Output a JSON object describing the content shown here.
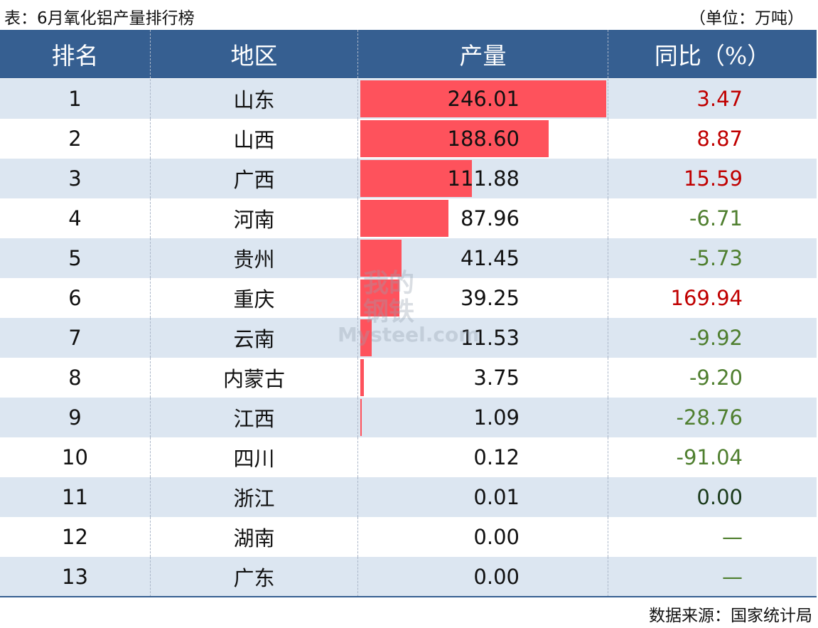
{
  "title": "表：6月氧化铝产量排行榜",
  "unit": "（单位：万吨）",
  "source": "数据来源：国家统计局",
  "watermark": {
    "line1": "我的",
    "line2": "钢铁",
    "line3": "Mysteel.com"
  },
  "colors": {
    "header": "#365f91",
    "row_alt": "#dce6f1",
    "bar": "#fe525c",
    "positive": "#c00000",
    "negative": "#4f7f2f"
  },
  "chart_data": {
    "type": "table",
    "columns": [
      "排名",
      "地区",
      "产量",
      "同比（%）"
    ],
    "rows": [
      {
        "rank": "1",
        "region": "山东",
        "output": "246.01",
        "yoy": "3.47"
      },
      {
        "rank": "2",
        "region": "山西",
        "output": "188.60",
        "yoy": "8.87"
      },
      {
        "rank": "3",
        "region": "广西",
        "output": "111.88",
        "yoy": "15.59"
      },
      {
        "rank": "4",
        "region": "河南",
        "output": "87.96",
        "yoy": "-6.71"
      },
      {
        "rank": "5",
        "region": "贵州",
        "output": "41.45",
        "yoy": "-5.73"
      },
      {
        "rank": "6",
        "region": "重庆",
        "output": "39.25",
        "yoy": "169.94"
      },
      {
        "rank": "7",
        "region": "云南",
        "output": "11.53",
        "yoy": "-9.92"
      },
      {
        "rank": "8",
        "region": "内蒙古",
        "output": "3.75",
        "yoy": "-9.20"
      },
      {
        "rank": "9",
        "region": "江西",
        "output": "1.09",
        "yoy": "-28.76"
      },
      {
        "rank": "10",
        "region": "四川",
        "output": "0.12",
        "yoy": "-91.04"
      },
      {
        "rank": "11",
        "region": "浙江",
        "output": "0.01",
        "yoy": "0.00"
      },
      {
        "rank": "12",
        "region": "湖南",
        "output": "0.00",
        "yoy": "—"
      },
      {
        "rank": "13",
        "region": "广东",
        "output": "0.00",
        "yoy": "—"
      }
    ]
  }
}
